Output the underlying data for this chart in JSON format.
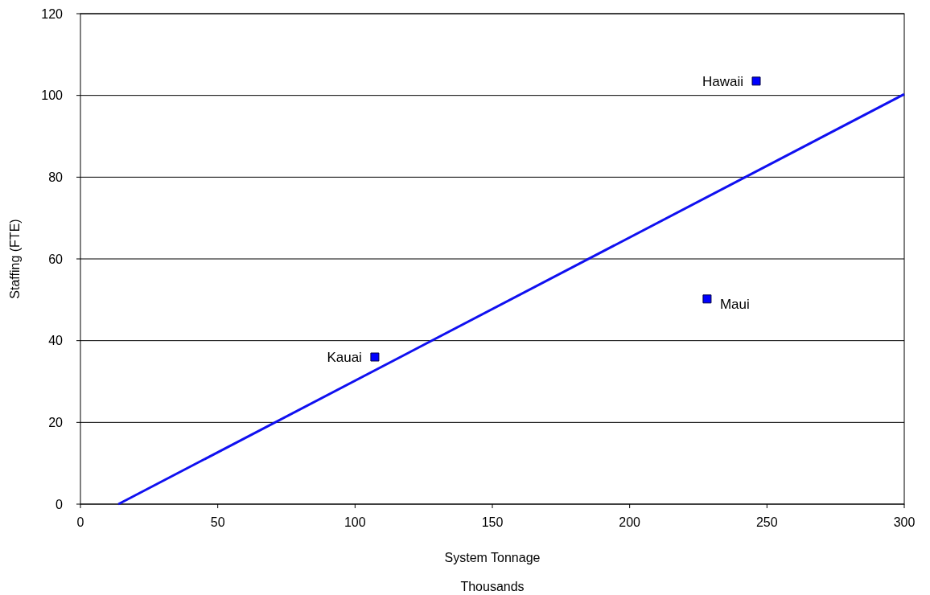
{
  "chart_data": {
    "type": "scatter",
    "xlabel": "System Tonnage",
    "ylabel": "Staffing (FTE)",
    "annotations": [
      "Thousands"
    ],
    "xlim": [
      0,
      300
    ],
    "xticks": [
      0,
      50,
      100,
      150,
      200,
      250,
      300
    ],
    "ylim": [
      0,
      120
    ],
    "yticks": [
      0,
      20,
      40,
      60,
      80,
      100,
      120
    ],
    "grid": "y",
    "series": [
      {
        "name": "Kauai",
        "color": "#0000ff",
        "marker": "square",
        "x": [
          107.2
        ],
        "values": [
          36.0
        ]
      },
      {
        "name": "Maui",
        "color": "#0000ff",
        "marker": "square",
        "x": [
          228.2
        ],
        "values": [
          50.2
        ]
      },
      {
        "name": "Hawaii",
        "color": "#0000ff",
        "marker": "square",
        "x": [
          246.1
        ],
        "values": [
          103.5
        ]
      },
      {
        "type": "line",
        "color": "#1010f0",
        "line_style": "solid",
        "x": [
          13.8,
          300
        ],
        "values": [
          0,
          100.3
        ]
      }
    ]
  }
}
